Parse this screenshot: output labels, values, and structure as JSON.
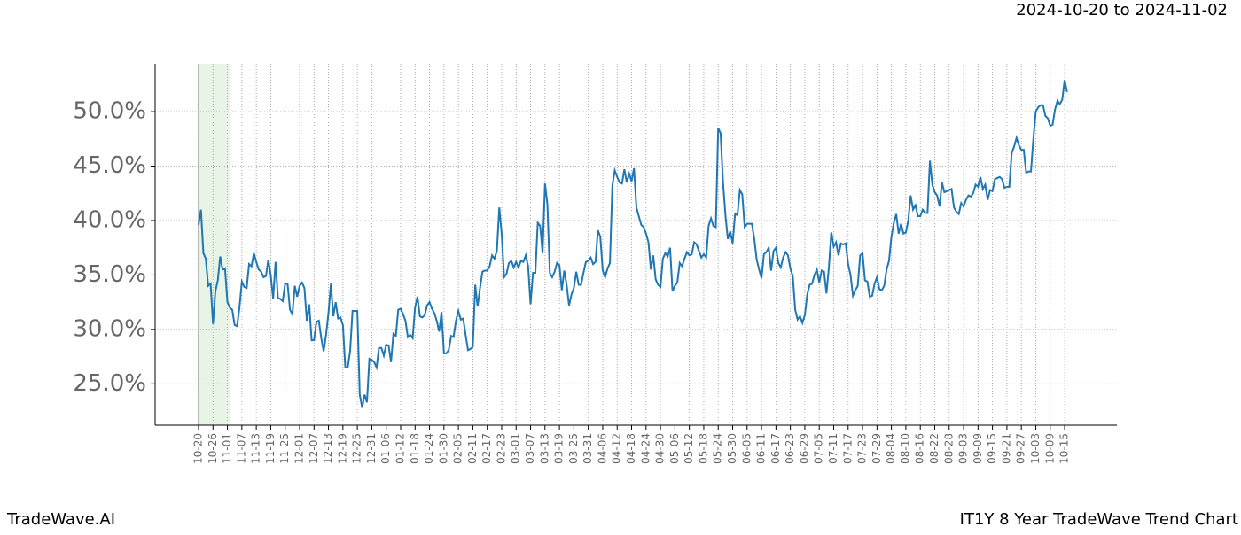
{
  "chart_data": {
    "type": "line",
    "annotation": "2024-10-20 to 2024-11-02",
    "footer_left": "TradeWave.AI",
    "footer_right": "IT1Y 8 Year TradeWave Trend Chart",
    "highlight_x": [
      0,
      13
    ],
    "grid": true,
    "categories": [
      "10-20",
      null,
      null,
      null,
      null,
      null,
      "10-26",
      null,
      null,
      null,
      null,
      null,
      "11-01",
      null,
      null,
      null,
      null,
      null,
      "11-07",
      null,
      null,
      null,
      null,
      null,
      "11-13",
      null,
      null,
      null,
      null,
      null,
      "11-19",
      null,
      null,
      null,
      null,
      null,
      "11-25",
      null,
      null,
      null,
      null,
      null,
      "12-01",
      null,
      null,
      null,
      null,
      null,
      "12-07",
      null,
      null,
      null,
      null,
      null,
      "12-13",
      null,
      null,
      null,
      null,
      null,
      "12-19",
      null,
      null,
      null,
      null,
      null,
      "12-25",
      null,
      null,
      null,
      null,
      null,
      "12-31",
      null,
      null,
      null,
      null,
      null,
      "01-06",
      null,
      null,
      null,
      null,
      null,
      "01-12",
      null,
      null,
      null,
      null,
      null,
      "01-18",
      null,
      null,
      null,
      null,
      null,
      "01-24",
      null,
      null,
      null,
      null,
      null,
      "01-30",
      null,
      null,
      null,
      null,
      null,
      "02-05",
      null,
      null,
      null,
      null,
      null,
      "02-11",
      null,
      null,
      null,
      null,
      null,
      "02-17",
      null,
      null,
      null,
      null,
      null,
      "02-23",
      null,
      null,
      null,
      null,
      null,
      "03-01",
      null,
      null,
      null,
      null,
      null,
      "03-07",
      null,
      null,
      null,
      null,
      null,
      "03-13",
      null,
      null,
      null,
      null,
      null,
      "03-19",
      null,
      null,
      null,
      null,
      null,
      "03-25",
      null,
      null,
      null,
      null,
      null,
      "03-31",
      null,
      null,
      null,
      null,
      null,
      "04-06",
      null,
      null,
      null,
      null,
      null,
      "04-12",
      null,
      null,
      null,
      null,
      null,
      "04-18",
      null,
      null,
      null,
      null,
      null,
      "04-24",
      null,
      null,
      null,
      null,
      null,
      "04-30",
      null,
      null,
      null,
      null,
      null,
      "05-06",
      null,
      null,
      null,
      null,
      null,
      "05-12",
      null,
      null,
      null,
      null,
      null,
      "05-18",
      null,
      null,
      null,
      null,
      null,
      "05-24",
      null,
      null,
      null,
      null,
      null,
      "05-30",
      null,
      null,
      null,
      null,
      null,
      "06-05",
      null,
      null,
      null,
      null,
      null,
      "06-11",
      null,
      null,
      null,
      null,
      null,
      "06-17",
      null,
      null,
      null,
      null,
      null,
      "06-23",
      null,
      null,
      null,
      null,
      null,
      "06-29",
      null,
      null,
      null,
      null,
      null,
      "07-05",
      null,
      null,
      null,
      null,
      null,
      "07-11",
      null,
      null,
      null,
      null,
      null,
      "07-17",
      null,
      null,
      null,
      null,
      null,
      "07-23",
      null,
      null,
      null,
      null,
      null,
      "07-29",
      null,
      null,
      null,
      null,
      null,
      "08-04",
      null,
      null,
      null,
      null,
      null,
      "08-10",
      null,
      null,
      null,
      null,
      null,
      "08-16",
      null,
      null,
      null,
      null,
      null,
      "08-22",
      null,
      null,
      null,
      null,
      null,
      "08-28",
      null,
      null,
      null,
      null,
      null,
      "09-03",
      null,
      null,
      null,
      null,
      null,
      "09-09",
      null,
      null,
      null,
      null,
      null,
      "09-15",
      null,
      null,
      null,
      null,
      null,
      "09-21",
      null,
      null,
      null,
      null,
      null,
      "09-27",
      null,
      null,
      null,
      null,
      null,
      "10-03",
      null,
      null,
      null,
      null,
      null,
      "10-09",
      null,
      null,
      null,
      null,
      null,
      "10-15",
      null
    ],
    "series": [
      {
        "color": "#1f77b4",
        "values": [
          39.6,
          41,
          37,
          36.5,
          34,
          34.2,
          30.5,
          33.5,
          34.5,
          36.7,
          35.5,
          35.6,
          32.5,
          32,
          31.8,
          30.4,
          30.3,
          32,
          34.4,
          33.9,
          33.8,
          36,
          35.8,
          37,
          36.2,
          35.5,
          35.3,
          34.8,
          34.9,
          36.4,
          35,
          32.8,
          36.2,
          32.9,
          32.8,
          32.6,
          34.2,
          34.2,
          31.8,
          31.4,
          34,
          33,
          34,
          34.3,
          33.8,
          30.8,
          32.3,
          29,
          29,
          30.7,
          30.8,
          29.2,
          28,
          29.5,
          31.5,
          34.2,
          31.2,
          32.5,
          31,
          31.1,
          30.4,
          26.5,
          26.5,
          28,
          31.7,
          31.7,
          31.7,
          24,
          22.8,
          24,
          23.3,
          27.3,
          27.2,
          27,
          26.5,
          28.3,
          28.3,
          27.6,
          28.6,
          28.5,
          27,
          29.6,
          29.4,
          31.8,
          31.9,
          31.4,
          30.8,
          29.3,
          29.5,
          29.2,
          32,
          33,
          31.2,
          31.1,
          31.3,
          32.2,
          32.5,
          31.9,
          31.5,
          30.8,
          29.8,
          31.6,
          27.8,
          27.8,
          28.1,
          29.4,
          29.3,
          30.8,
          31.7,
          30.9,
          31,
          29.5,
          28.1,
          28.2,
          28.4,
          34.1,
          32.1,
          33.8,
          35.3,
          35.4,
          35.4,
          35.8,
          36.8,
          36.5,
          37.2,
          41.2,
          38.8,
          34.8,
          35.1,
          36.1,
          36.3,
          35.7,
          36.2,
          35.7,
          36.3,
          36.2,
          36.8,
          35.8,
          32.3,
          35.2,
          35.2,
          39.8,
          39.5,
          37,
          43.4,
          41.5,
          35.2,
          34.8,
          35.3,
          36.1,
          35.9,
          33.6,
          35.4,
          34.1,
          32.2,
          33.2,
          33.8,
          35.3,
          34.1,
          34.1,
          35.2,
          36.2,
          36.3,
          36.6,
          36,
          36.2,
          39.1,
          38.5,
          35.4,
          34.8,
          35.6,
          36.1,
          43.2,
          44.6,
          44,
          43.5,
          43.4,
          44.7,
          43.5,
          44.3,
          43.6,
          44.8,
          41.2,
          40.4,
          39.6,
          39.4,
          38.8,
          38,
          35.5,
          36.8,
          34.6,
          34.1,
          33.9,
          36.5,
          37,
          36.7,
          37.5,
          33.5,
          34,
          34.3,
          36.1,
          35.8,
          36.5,
          37.1,
          36.8,
          36.9,
          38,
          37.8,
          37.2,
          36.6,
          36.9,
          36.6,
          39.5,
          40.2,
          39.5,
          39.4,
          48.5,
          48,
          43.5,
          40.5,
          38.3,
          39,
          37.9,
          40.6,
          40.5,
          42.8,
          42.4,
          39.4,
          39.7,
          39.7,
          39.7,
          38.3,
          36.4,
          35.5,
          34.7,
          36.9,
          37.1,
          37.5,
          35.4,
          37.2,
          37.5,
          36.1,
          35.7,
          36.6,
          37.1,
          36.8,
          35.6,
          34.9,
          31.8,
          30.9,
          31.2,
          30.6,
          31.3,
          33.2,
          34.1,
          34.2,
          35,
          35.5,
          34.3,
          35.4,
          35.3,
          33.3,
          35.7,
          38.9,
          37.6,
          38,
          36.8,
          37.9,
          37.8,
          37.9,
          36,
          35,
          33.1,
          33.6,
          34,
          36.8,
          37,
          34.5,
          34.4,
          33,
          33.1,
          34.2,
          34.8,
          33.7,
          33.6,
          34,
          35.5,
          36.3,
          38.5,
          39.8,
          40.6,
          38.8,
          39.7,
          38.8,
          38.9,
          40,
          42.3,
          41,
          41.4,
          40.4,
          40.4,
          41,
          40.7,
          40.7,
          45.5,
          43.3,
          42.6,
          42.3,
          41.3,
          43.5,
          42.6,
          42.7,
          42.8,
          42.9,
          41.2,
          40.8,
          40.6,
          41.6,
          41.3,
          41.9,
          42.3,
          42.2,
          42.5,
          43.3,
          43.1,
          44,
          42.9,
          43.3,
          41.9,
          42.8,
          42.7,
          43.8,
          43.9,
          44,
          43.8,
          43,
          43.1,
          43.1,
          46.2,
          46.8,
          47.6,
          46.9,
          46.5,
          46.5,
          44.4,
          44.5,
          44.5,
          47.5,
          50,
          50.4,
          50.6,
          50.6,
          49.6,
          49.4,
          48.7,
          48.8,
          50.2,
          51,
          50.7,
          51.1,
          52.9,
          51.8
        ]
      }
    ],
    "ylim": [
      21.2,
      54.4
    ],
    "yticks": [
      {
        "value": 25,
        "label": "25.0%"
      },
      {
        "value": 30,
        "label": "30.0%"
      },
      {
        "value": 35,
        "label": "35.0%"
      },
      {
        "value": 40,
        "label": "40.0%"
      },
      {
        "value": 45,
        "label": "45.0%"
      },
      {
        "value": 50,
        "label": "50.0%"
      }
    ]
  }
}
